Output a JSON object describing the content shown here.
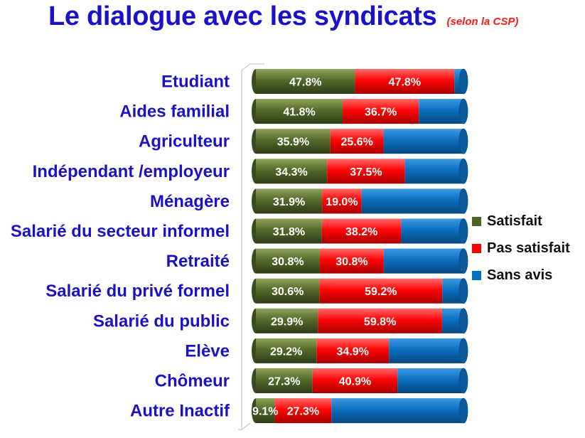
{
  "header": {
    "title": "Le dialogue avec les syndicats",
    "subtitle": "(selon la CSP)"
  },
  "colors": {
    "satisfait": "#4f6228",
    "pas_satisfait": "#ff0000",
    "sans_avis": "#0070c0"
  },
  "chart_data": {
    "type": "bar",
    "orientation": "horizontal",
    "stacked": true,
    "categories": [
      "Etudiant",
      "Aides familial",
      "Agriculteur",
      "Indépendant /employeur",
      "Ménagère",
      "Salarié du secteur informel",
      "Retraité",
      "Salarié du privé formel",
      "Salarié du public",
      "Elève",
      "Chômeur",
      "Autre Inactif"
    ],
    "series": [
      {
        "name": "Satisfait",
        "values": [
          47.8,
          41.8,
          35.9,
          34.3,
          31.9,
          31.8,
          30.8,
          30.6,
          29.9,
          29.2,
          27.3,
          9.1
        ]
      },
      {
        "name": "Pas satisfait",
        "values": [
          47.8,
          36.7,
          25.6,
          37.5,
          19.0,
          38.2,
          30.8,
          59.2,
          59.8,
          34.9,
          40.9,
          27.3
        ]
      },
      {
        "name": "Sans avis",
        "values": [
          4.4,
          21.5,
          38.5,
          28.2,
          49.1,
          30.0,
          38.4,
          10.2,
          10.3,
          35.9,
          31.8,
          63.6
        ]
      }
    ],
    "data_labels": {
      "Satisfait": [
        "47.8%",
        "41.8%",
        "35.9%",
        "34.3%",
        "31.9%",
        "31.8%",
        "30.8%",
        "30.6%",
        "29.9%",
        "29.2%",
        "27.3%",
        "9.1%"
      ],
      "Pas satisfait": [
        "47.8%",
        "36.7%",
        "25.6%",
        "37.5%",
        "19.0%",
        "38.2%",
        "30.8%",
        "59.2%",
        "59.8%",
        "34.9%",
        "40.9%",
        "27.3%"
      ]
    },
    "xlim": [
      0,
      100
    ],
    "grid": false,
    "legend_position": "right"
  }
}
